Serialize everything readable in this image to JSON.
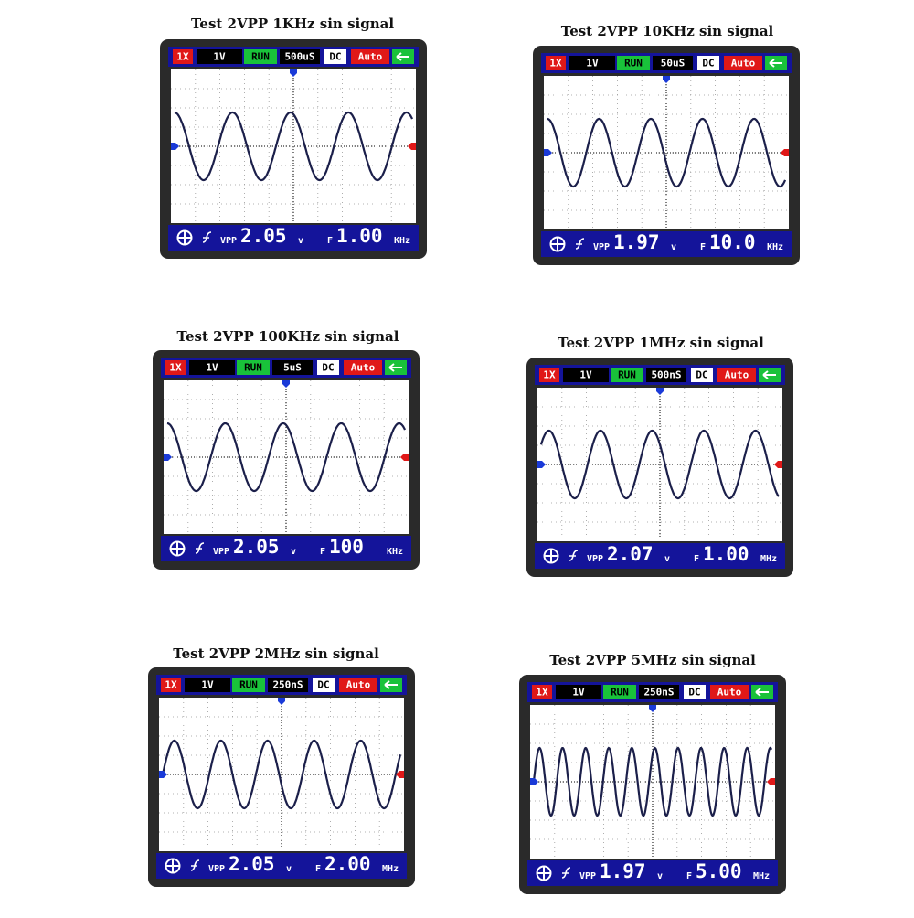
{
  "panels": [
    {
      "title": "Test 2VPP 1KHz sin signal",
      "probe": "1X",
      "volts": "1V",
      "state": "RUN",
      "timebase": "500uS",
      "coupling": "DC",
      "trigger": "Auto",
      "vpp_label": "VPP",
      "vpp": "2.05",
      "vpp_unit": "v",
      "freq_label": "F",
      "freq": "1.00",
      "freq_unit": "KHz"
    },
    {
      "title": "Test 2VPP 10KHz sin signal",
      "probe": "1X",
      "volts": "1V",
      "state": "RUN",
      "timebase": "50uS",
      "coupling": "DC",
      "trigger": "Auto",
      "vpp_label": "VPP",
      "vpp": "1.97",
      "vpp_unit": "v",
      "freq_label": "F",
      "freq": "10.0",
      "freq_unit": "KHz"
    },
    {
      "title": "Test 2VPP 100KHz sin signal",
      "probe": "1X",
      "volts": "1V",
      "state": "RUN",
      "timebase": "5uS",
      "coupling": "DC",
      "trigger": "Auto",
      "vpp_label": "VPP",
      "vpp": "2.05",
      "vpp_unit": "v",
      "freq_label": "F",
      "freq": "100",
      "freq_unit": "KHz"
    },
    {
      "title": "Test 2VPP 1MHz sin signal",
      "probe": "1X",
      "volts": "1V",
      "state": "RUN",
      "timebase": "500nS",
      "coupling": "DC",
      "trigger": "Auto",
      "vpp_label": "VPP",
      "vpp": "2.07",
      "vpp_unit": "v",
      "freq_label": "F",
      "freq": "1.00",
      "freq_unit": "MHz"
    },
    {
      "title": "Test 2VPP 2MHz sin signal",
      "probe": "1X",
      "volts": "1V",
      "state": "RUN",
      "timebase": "250nS",
      "coupling": "DC",
      "trigger": "Auto",
      "vpp_label": "VPP",
      "vpp": "2.05",
      "vpp_unit": "v",
      "freq_label": "F",
      "freq": "2.00",
      "freq_unit": "MHz"
    },
    {
      "title": "Test 2VPP 5MHz sin signal",
      "probe": "1X",
      "volts": "1V",
      "state": "RUN",
      "timebase": "250nS",
      "coupling": "DC",
      "trigger": "Auto",
      "vpp_label": "VPP",
      "vpp": "1.97",
      "vpp_unit": "v",
      "freq_label": "F",
      "freq": "5.00",
      "freq_unit": "MHz"
    }
  ]
}
